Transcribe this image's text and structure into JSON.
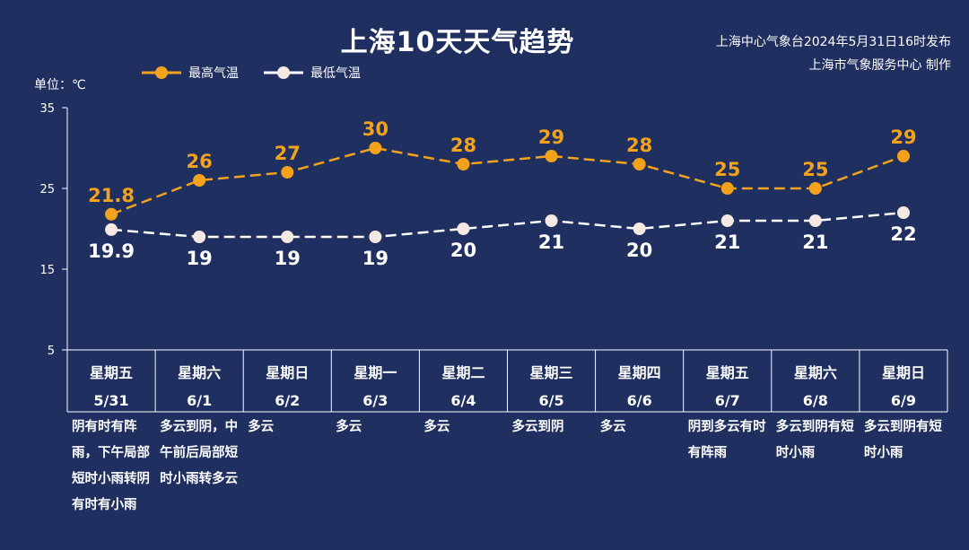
{
  "title": "上海10天天气趋势",
  "source_line1": "上海中心气象台2024年5月31日16时发布",
  "source_line2": "上海市气象服务中心 制作",
  "unit": "单位：℃",
  "colors": {
    "high": "#f3a21c",
    "low": "#ffffff",
    "background": "#1f2f60",
    "axis": "#ffffff"
  },
  "chart_data": {
    "type": "line",
    "title": "上海10天天气趋势",
    "ylabel": "单位：℃",
    "ylim": [
      5,
      35
    ],
    "yticks": [
      "35",
      "25",
      "15",
      "5"
    ],
    "grid": false,
    "legend": "top-left",
    "categories": [
      "5/31",
      "6/1",
      "6/2",
      "6/3",
      "6/4",
      "6/5",
      "6/6",
      "6/7",
      "6/8",
      "6/9"
    ],
    "weekdays": [
      "星期五",
      "星期六",
      "星期日",
      "星期一",
      "星期二",
      "星期三",
      "星期四",
      "星期五",
      "星期六",
      "星期日"
    ],
    "weather": [
      "阴有时有阵雨，下午局部短时小雨转阴有时有小雨",
      "多云到阴，中午前后局部短时小雨转多云",
      "多云",
      "多云",
      "多云",
      "多云到阴",
      "多云",
      "阴到多云有时有阵雨",
      "多云到阴有短时小雨",
      "多云到阴有短时小雨"
    ],
    "series": [
      {
        "name": "最高气温",
        "values": [
          21.8,
          26,
          27,
          30,
          28,
          29,
          28,
          25,
          25,
          29
        ],
        "labels": [
          "21.8",
          "26",
          "27",
          "30",
          "28",
          "29",
          "28",
          "25",
          "25",
          "29"
        ]
      },
      {
        "name": "最低气温",
        "values": [
          19.9,
          19,
          19,
          19,
          20,
          21,
          20,
          21,
          21,
          22
        ],
        "labels": [
          "19.9",
          "19",
          "19",
          "19",
          "20",
          "21",
          "20",
          "21",
          "21",
          "22"
        ]
      }
    ]
  }
}
